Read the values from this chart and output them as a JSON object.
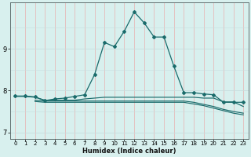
{
  "xlabel": "Humidex (Indice chaleur)",
  "bg_color": "#d8f0ee",
  "line_color": "#1a6b6b",
  "grid_color_v": "#e8b0b0",
  "grid_color_h": "#c8dede",
  "xlim": [
    -0.5,
    23.5
  ],
  "ylim": [
    6.85,
    10.1
  ],
  "yticks": [
    7,
    8,
    9
  ],
  "xticks": [
    0,
    1,
    2,
    3,
    4,
    5,
    6,
    7,
    8,
    9,
    10,
    11,
    12,
    13,
    14,
    15,
    16,
    17,
    18,
    19,
    20,
    21,
    22,
    23
  ],
  "line1_x": [
    0,
    1,
    2,
    3,
    4,
    5,
    6,
    7,
    8,
    9,
    10,
    11,
    12,
    13,
    14,
    15,
    16,
    17,
    18,
    19,
    20,
    21,
    22,
    23
  ],
  "line1_y": [
    7.87,
    7.87,
    7.85,
    7.76,
    7.8,
    7.82,
    7.86,
    7.9,
    8.38,
    9.15,
    9.05,
    9.42,
    9.88,
    9.62,
    9.28,
    9.28,
    8.58,
    7.95,
    7.95,
    7.92,
    7.9,
    7.72,
    7.72,
    7.72
  ],
  "line2_x": [
    0,
    1,
    2,
    3,
    4,
    5,
    6,
    7,
    8,
    9,
    10,
    11,
    12,
    13,
    14,
    15,
    16,
    17,
    18,
    19,
    20,
    21,
    22,
    23
  ],
  "line2_y": [
    7.86,
    7.86,
    7.84,
    7.77,
    7.77,
    7.77,
    7.77,
    7.8,
    7.82,
    7.84,
    7.84,
    7.84,
    7.84,
    7.84,
    7.84,
    7.84,
    7.84,
    7.84,
    7.84,
    7.82,
    7.82,
    7.73,
    7.73,
    7.62
  ],
  "line3_x": [
    2,
    3,
    4,
    5,
    6,
    7,
    8,
    9,
    10,
    11,
    12,
    13,
    14,
    15,
    16,
    17,
    18,
    19,
    20,
    21,
    22,
    23
  ],
  "line3_y": [
    7.74,
    7.72,
    7.72,
    7.72,
    7.72,
    7.72,
    7.72,
    7.72,
    7.72,
    7.72,
    7.72,
    7.72,
    7.72,
    7.72,
    7.72,
    7.72,
    7.68,
    7.64,
    7.58,
    7.52,
    7.46,
    7.42
  ],
  "line4_x": [
    2,
    3,
    4,
    5,
    6,
    7,
    8,
    9,
    10,
    11,
    12,
    13,
    14,
    15,
    16,
    17,
    18,
    19,
    20,
    21,
    22,
    23
  ],
  "line4_y": [
    7.77,
    7.75,
    7.75,
    7.75,
    7.75,
    7.75,
    7.75,
    7.75,
    7.75,
    7.75,
    7.75,
    7.75,
    7.75,
    7.75,
    7.75,
    7.75,
    7.72,
    7.67,
    7.62,
    7.55,
    7.5,
    7.46
  ]
}
